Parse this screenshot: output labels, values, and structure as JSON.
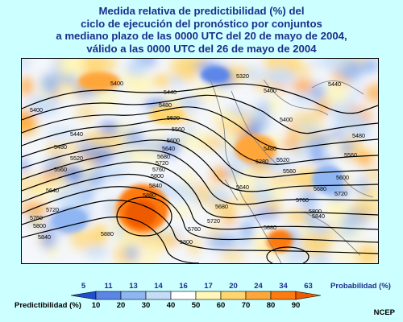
{
  "title": {
    "lines": [
      "Medida relativa de predictibilidad (%) del",
      "ciclo de ejecución del pronóstico por conjuntos",
      "a mediano plazo de las 0000 UTC del 20 de mayo de 2004,",
      "válido a las 0000 UTC del 26 de mayo de 2004"
    ]
  },
  "contour_labels": [
    "5280",
    "5320",
    "5400",
    "5440",
    "5480",
    "5520",
    "5560",
    "5600",
    "5640",
    "5680",
    "5720",
    "5760",
    "5800",
    "5840",
    "5880"
  ],
  "colorbar": {
    "probability_title": "Probabilidad (%)",
    "probability_ticks": [
      "5",
      "11",
      "13",
      "14",
      "16",
      "17",
      "20",
      "24",
      "34",
      "63"
    ],
    "predictability_title": "Predictibilidad (%)",
    "predictability_ticks": [
      "10",
      "20",
      "30",
      "40",
      "50",
      "60",
      "70",
      "80",
      "90"
    ],
    "colors": [
      "#1f4fd1",
      "#5b86e8",
      "#8fb5f2",
      "#c4dcf8",
      "#ffffff",
      "#fff6b8",
      "#ffd56e",
      "#ffa63a",
      "#ff7a10",
      "#ee5a00"
    ]
  },
  "credit": "NCEP"
}
